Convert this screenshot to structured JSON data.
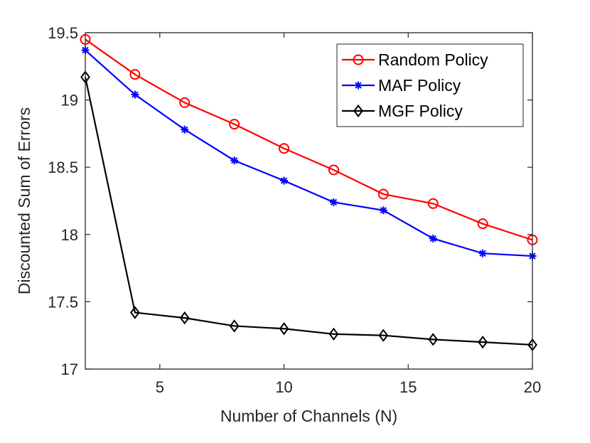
{
  "chart_data": {
    "type": "line",
    "title": "",
    "xlabel": "Number of Channels (N)",
    "ylabel": "Discounted Sum of Errors",
    "xlim": [
      2,
      20
    ],
    "ylim": [
      17,
      19.5
    ],
    "xticks": [
      5,
      10,
      15,
      20
    ],
    "yticks": [
      17,
      17.5,
      18,
      18.5,
      19,
      19.5
    ],
    "xtick_labels": [
      "5",
      "10",
      "15",
      "20"
    ],
    "ytick_labels": [
      "17",
      "17.5",
      "18",
      "18.5",
      "19",
      "19.5"
    ],
    "grid": false,
    "legend_position": "top-right",
    "x": [
      2,
      4,
      6,
      8,
      10,
      12,
      14,
      16,
      18,
      20
    ],
    "series": [
      {
        "name": "Random Policy",
        "color": "#ff0000",
        "marker": "circle",
        "values": [
          19.45,
          19.19,
          18.98,
          18.82,
          18.64,
          18.48,
          18.3,
          18.23,
          18.08,
          17.96
        ]
      },
      {
        "name": "MAF Policy",
        "color": "#0000ff",
        "marker": "asterisk",
        "values": [
          19.37,
          19.04,
          18.78,
          18.55,
          18.4,
          18.24,
          18.18,
          17.97,
          17.86,
          17.84
        ]
      },
      {
        "name": "MGF Policy",
        "color": "#000000",
        "marker": "diamond",
        "values": [
          19.17,
          17.42,
          17.38,
          17.32,
          17.3,
          17.26,
          17.25,
          17.22,
          17.2,
          17.18
        ]
      }
    ]
  }
}
